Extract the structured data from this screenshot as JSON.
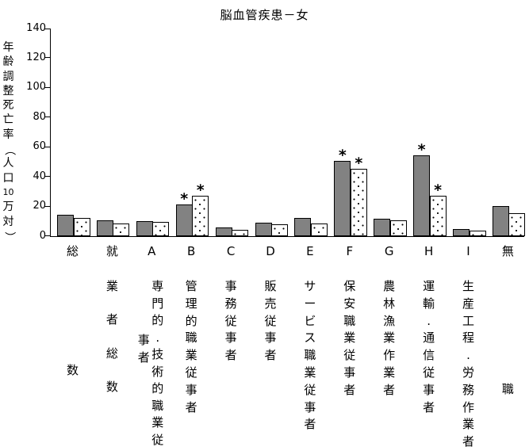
{
  "chart_data": {
    "type": "bar",
    "title": "脳血管疾患－女",
    "ylabel": "年齢調整死亡率（人口10万対）",
    "xlabel": "",
    "ylim": [
      0,
      140
    ],
    "ytick_interval": 20,
    "yticks": [
      0,
      20,
      40,
      60,
      80,
      100,
      120,
      140
    ],
    "grid": false,
    "legend": "none",
    "categories": [
      "総数",
      "就業者総数",
      "A 専門的.技術的職業従事者",
      "B 管理的職業従事者",
      "C 事務従事者",
      "D 販売従事者",
      "E サービス職業従事者",
      "F 保安職業従事者",
      "G 農林漁業作業者",
      "H 運輸.通信従事者",
      "I 生産工程.労務作業者",
      "無職"
    ],
    "category_display": [
      {
        "head": "総",
        "lines": [
          "数"
        ]
      },
      {
        "head": "就",
        "lines": [
          "業者総数"
        ]
      },
      {
        "head": "A",
        "lines": [
          "専門的.技術的職業従",
          "事者"
        ]
      },
      {
        "head": "B",
        "lines": [
          "管理的職業従事者"
        ]
      },
      {
        "head": "C",
        "lines": [
          "事務従事者"
        ]
      },
      {
        "head": "D",
        "lines": [
          "販売従事者"
        ]
      },
      {
        "head": "E",
        "lines": [
          "サービス職業従事者"
        ]
      },
      {
        "head": "F",
        "lines": [
          "保安職業従事者"
        ]
      },
      {
        "head": "G",
        "lines": [
          "農林漁業作業者"
        ]
      },
      {
        "head": "H",
        "lines": [
          "運輸.通信従事者"
        ]
      },
      {
        "head": "I",
        "lines": [
          "生産工程.労務作業者"
        ]
      },
      {
        "head": "無",
        "lines": [
          "職"
        ]
      }
    ],
    "series": [
      {
        "name": "gray-solid",
        "fill": "#828282",
        "values": [
          14,
          10,
          9.5,
          21,
          5.5,
          8.5,
          12,
          50,
          11,
          54,
          4.5,
          20
        ]
      },
      {
        "name": "white-dotted",
        "fill": "#ffffff",
        "pattern": "black-dots",
        "values": [
          12,
          8,
          9,
          26.5,
          3.5,
          7.5,
          8,
          45,
          10,
          26.5,
          3,
          15
        ]
      }
    ],
    "annotations": {
      "marker": "*",
      "marked_category_indices": [
        3,
        7,
        9
      ],
      "marked_categories": [
        "B 管理的職業従事者",
        "F 保安職業従事者",
        "H 運輸.通信従事者"
      ],
      "applies_to": "both bars of each marked category"
    },
    "colors": {
      "bar_gray": "#828282",
      "outline": "#000000",
      "background": "#ffffff",
      "text": "#000000"
    }
  }
}
